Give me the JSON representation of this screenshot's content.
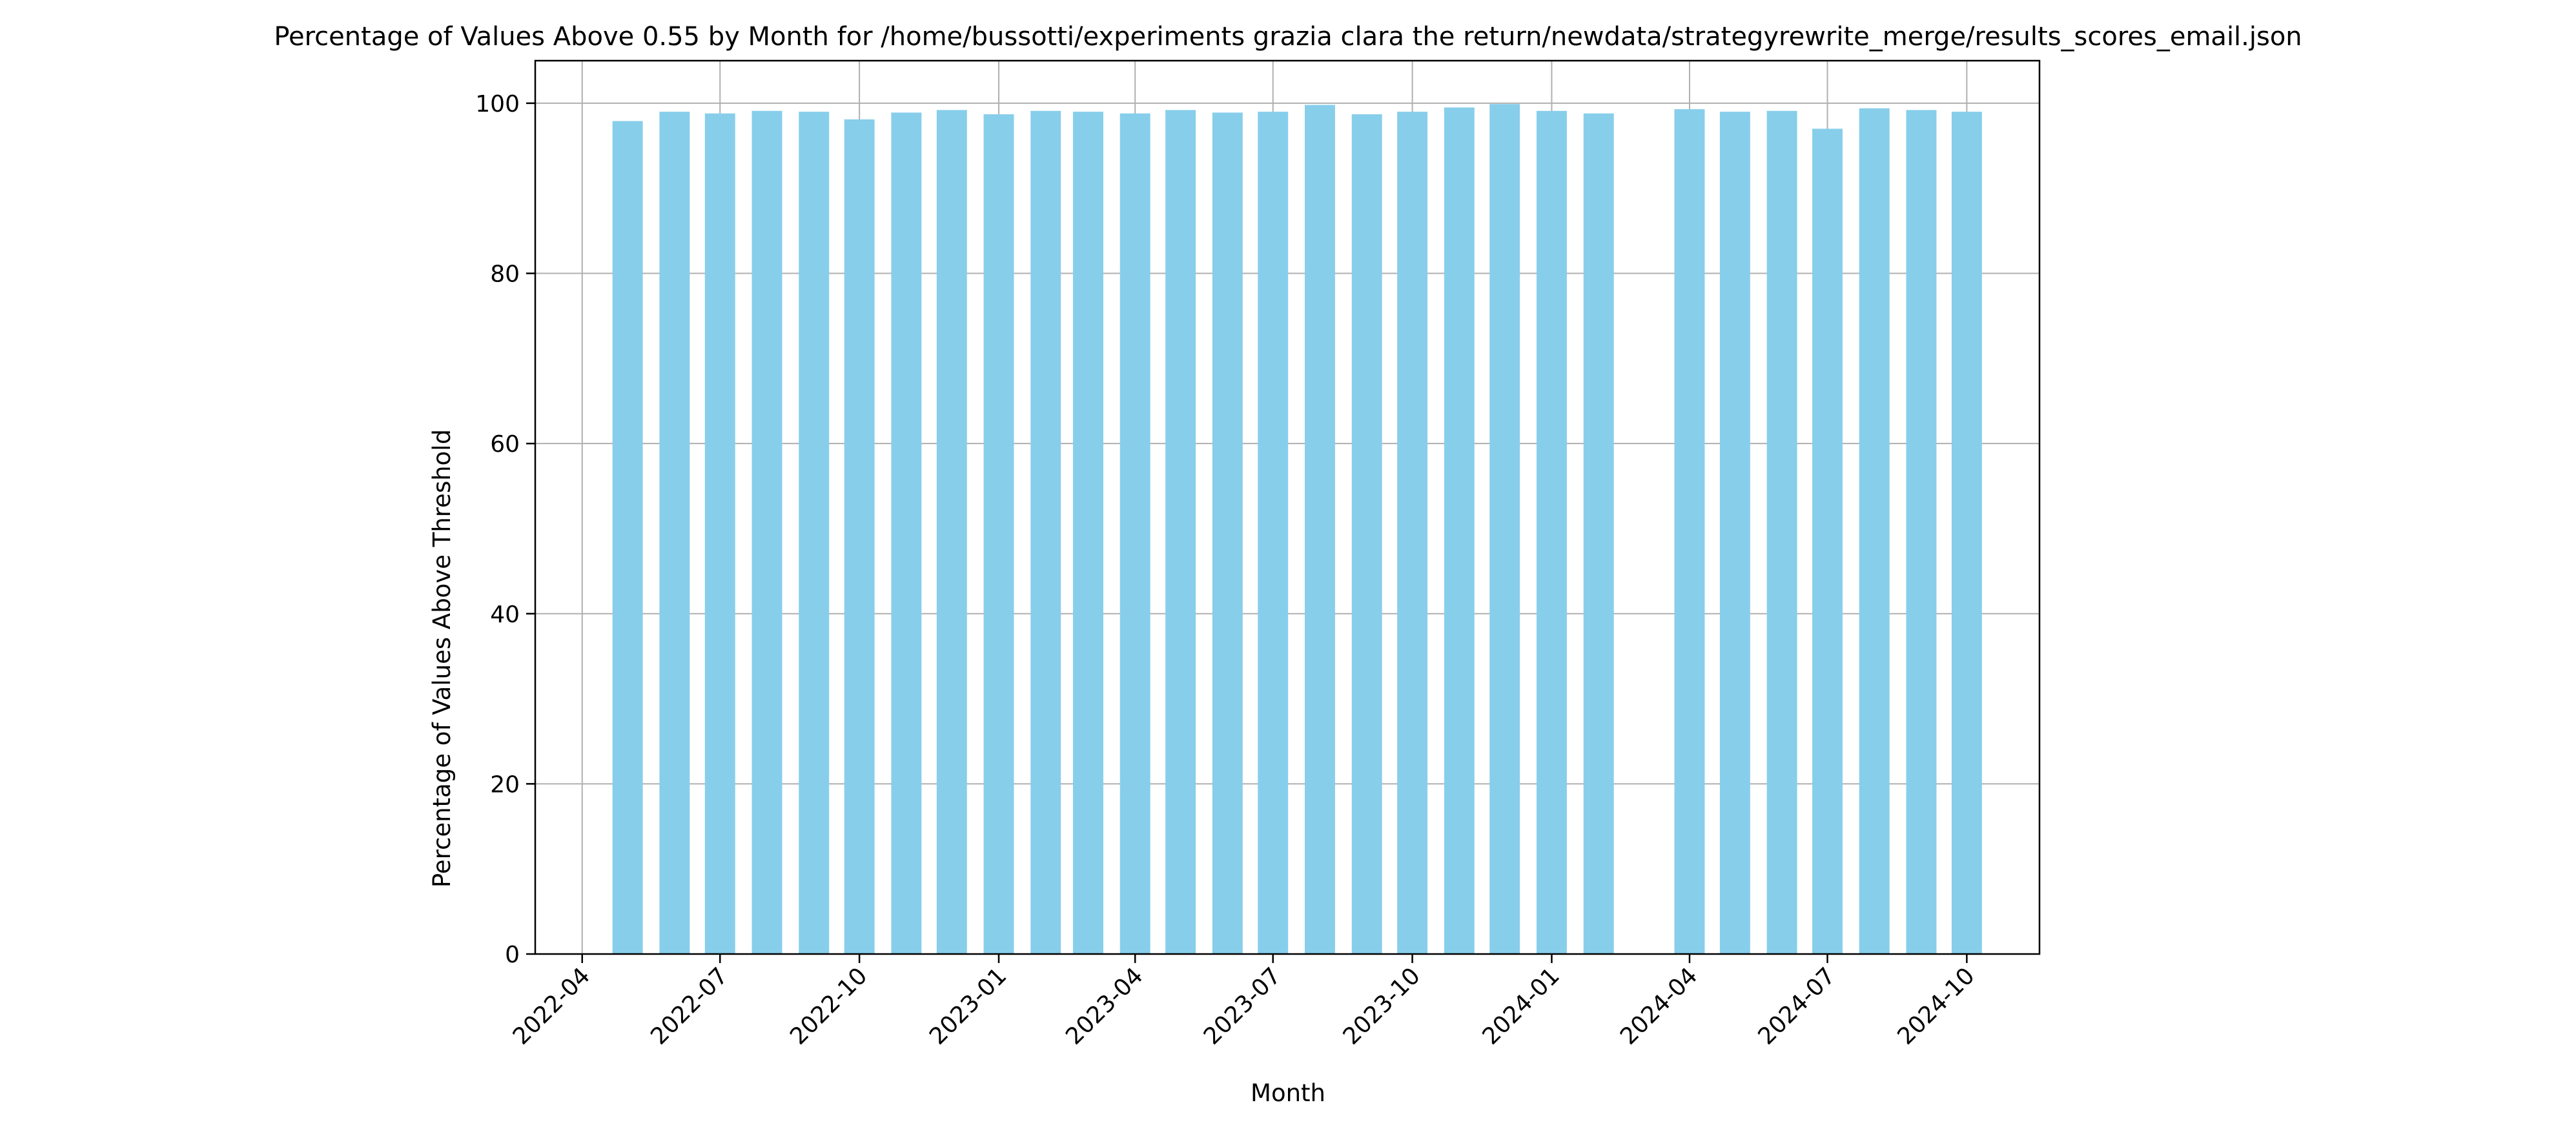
{
  "chart_data": {
    "type": "bar",
    "title": "Percentage of Values Above 0.55 by Month for /home/bussotti/experiments grazia clara the return/newdata/strategyrewrite_merge/results_scores_email.json",
    "xlabel": "Month",
    "ylabel": "Percentage of Values Above Threshold",
    "x_ticks": [
      "2022-04",
      "2022-07",
      "2022-10",
      "2023-01",
      "2023-04",
      "2023-07",
      "2023-10",
      "2024-01",
      "2024-04",
      "2024-07",
      "2024-10"
    ],
    "y_ticks": [
      0,
      20,
      40,
      60,
      80,
      100
    ],
    "xlim": [
      "2022-03-01",
      "2024-11-18"
    ],
    "ylim": [
      0,
      105
    ],
    "grid": true,
    "bar_color": "#87ceeb",
    "bars": [
      {
        "month": "2022-05",
        "value": 97.9
      },
      {
        "month": "2022-06",
        "value": 99.0
      },
      {
        "month": "2022-07",
        "value": 98.8
      },
      {
        "month": "2022-08",
        "value": 99.1
      },
      {
        "month": "2022-09",
        "value": 99.0
      },
      {
        "month": "2022-10",
        "value": 98.1
      },
      {
        "month": "2022-11",
        "value": 98.9
      },
      {
        "month": "2022-12",
        "value": 99.2
      },
      {
        "month": "2023-01",
        "value": 98.7
      },
      {
        "month": "2023-02",
        "value": 99.1
      },
      {
        "month": "2023-03",
        "value": 99.0
      },
      {
        "month": "2023-04",
        "value": 98.8
      },
      {
        "month": "2023-05",
        "value": 99.2
      },
      {
        "month": "2023-06",
        "value": 98.9
      },
      {
        "month": "2023-07",
        "value": 99.0
      },
      {
        "month": "2023-08",
        "value": 99.8
      },
      {
        "month": "2023-09",
        "value": 98.7
      },
      {
        "month": "2023-10",
        "value": 99.0
      },
      {
        "month": "2023-11",
        "value": 99.5
      },
      {
        "month": "2023-12",
        "value": 99.9
      },
      {
        "month": "2024-01",
        "value": 99.1
      },
      {
        "month": "2024-02",
        "value": 98.8
      },
      {
        "month": "2024-04",
        "value": 99.3
      },
      {
        "month": "2024-05",
        "value": 99.0
      },
      {
        "month": "2024-06",
        "value": 99.1
      },
      {
        "month": "2024-07",
        "value": 97.0
      },
      {
        "month": "2024-08",
        "value": 99.4
      },
      {
        "month": "2024-09",
        "value": 99.2
      },
      {
        "month": "2024-10",
        "value": 99.0
      }
    ]
  }
}
